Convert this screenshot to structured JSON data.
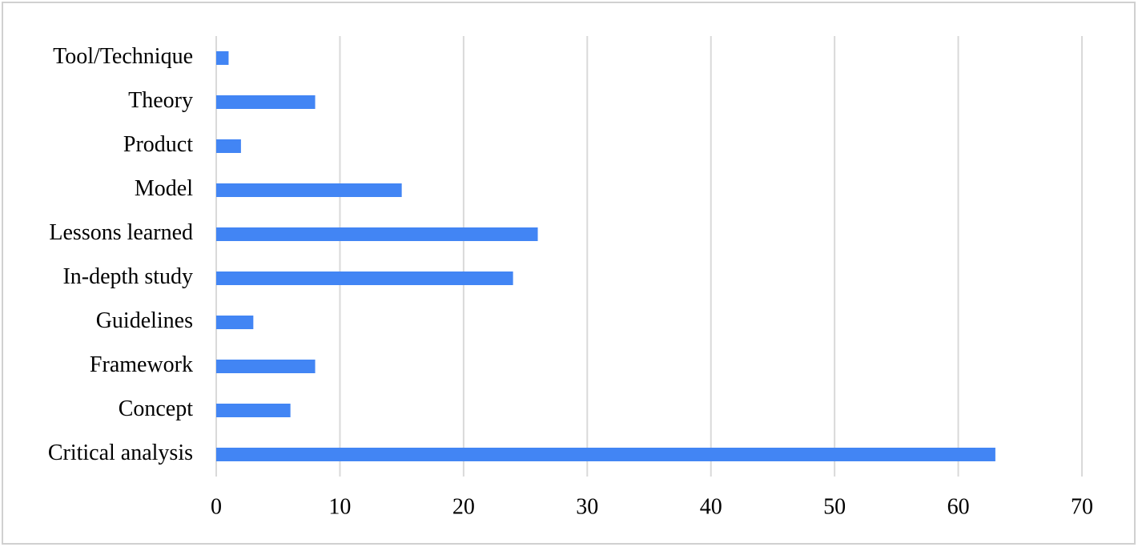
{
  "chart_data": {
    "type": "bar",
    "orientation": "horizontal",
    "categories": [
      "Critical analysis",
      "Concept",
      "Framework",
      "Guidelines",
      "In-depth study",
      "Lessons learned",
      "Model",
      "Product",
      "Theory",
      "Tool/Technique"
    ],
    "values": [
      63,
      6,
      8,
      3,
      24,
      26,
      15,
      2,
      8,
      1
    ],
    "color": "#4285f4",
    "xlim": [
      0,
      70
    ],
    "xticks": [
      0,
      10,
      20,
      30,
      40,
      50,
      60,
      70
    ],
    "grid": true
  }
}
